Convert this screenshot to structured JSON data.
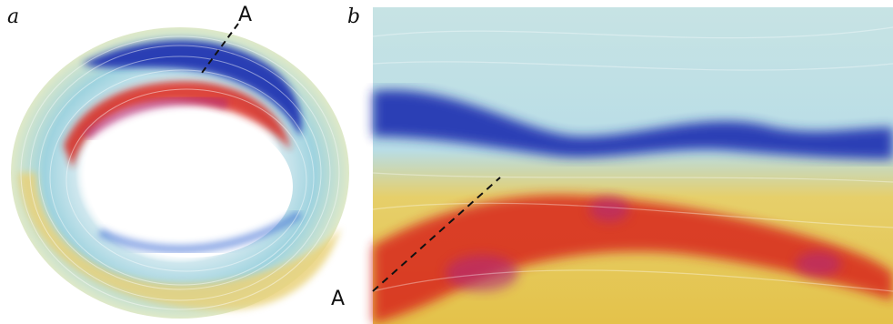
{
  "figure": {
    "panel_a": {
      "label": "a",
      "marker": "A"
    },
    "panel_b": {
      "label": "b",
      "marker": "A"
    }
  },
  "colors": {
    "deep_blue": "#1b2fb0",
    "cyan": "#8fd2df",
    "yellow": "#e8c93c",
    "orange": "#e8762a",
    "red": "#d8261e",
    "magenta": "#b0287a"
  }
}
